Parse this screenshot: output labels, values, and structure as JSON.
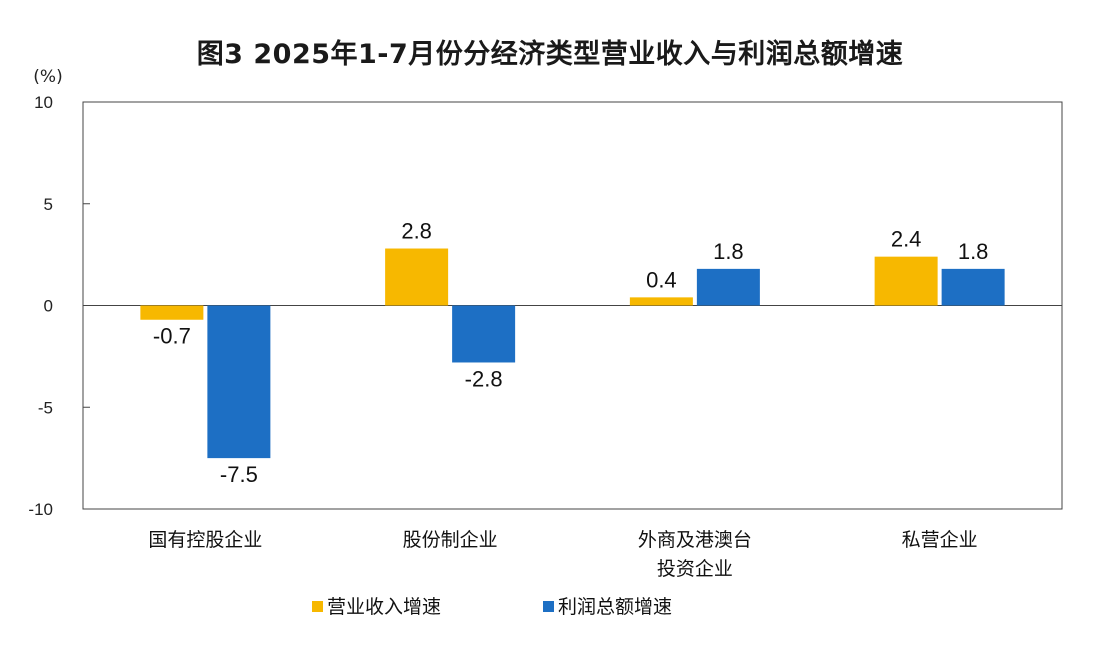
{
  "chart_data": {
    "type": "bar",
    "title": "图3  2025年1-7月份分经济类型营业收入与利润总额增速",
    "unit": "(%)",
    "categories": [
      [
        "国有控股企业"
      ],
      [
        "股份制企业"
      ],
      [
        "外商及港澳台",
        "投资企业"
      ],
      [
        "私营企业"
      ]
    ],
    "series": [
      {
        "name": "营业收入增速",
        "values": [
          -0.7,
          2.8,
          0.4,
          2.4
        ],
        "color": "#f7b800"
      },
      {
        "name": "利润总额增速",
        "values": [
          -7.5,
          -2.8,
          1.8,
          1.8
        ],
        "color": "#1d6fc4"
      }
    ],
    "ylim": [
      -10,
      10
    ],
    "yticks": [
      10,
      5,
      0,
      -5,
      -10
    ],
    "ytick_labels": [
      "10",
      "5",
      "0",
      "-5",
      "-10"
    ],
    "legend": "bottom",
    "grid": false
  }
}
